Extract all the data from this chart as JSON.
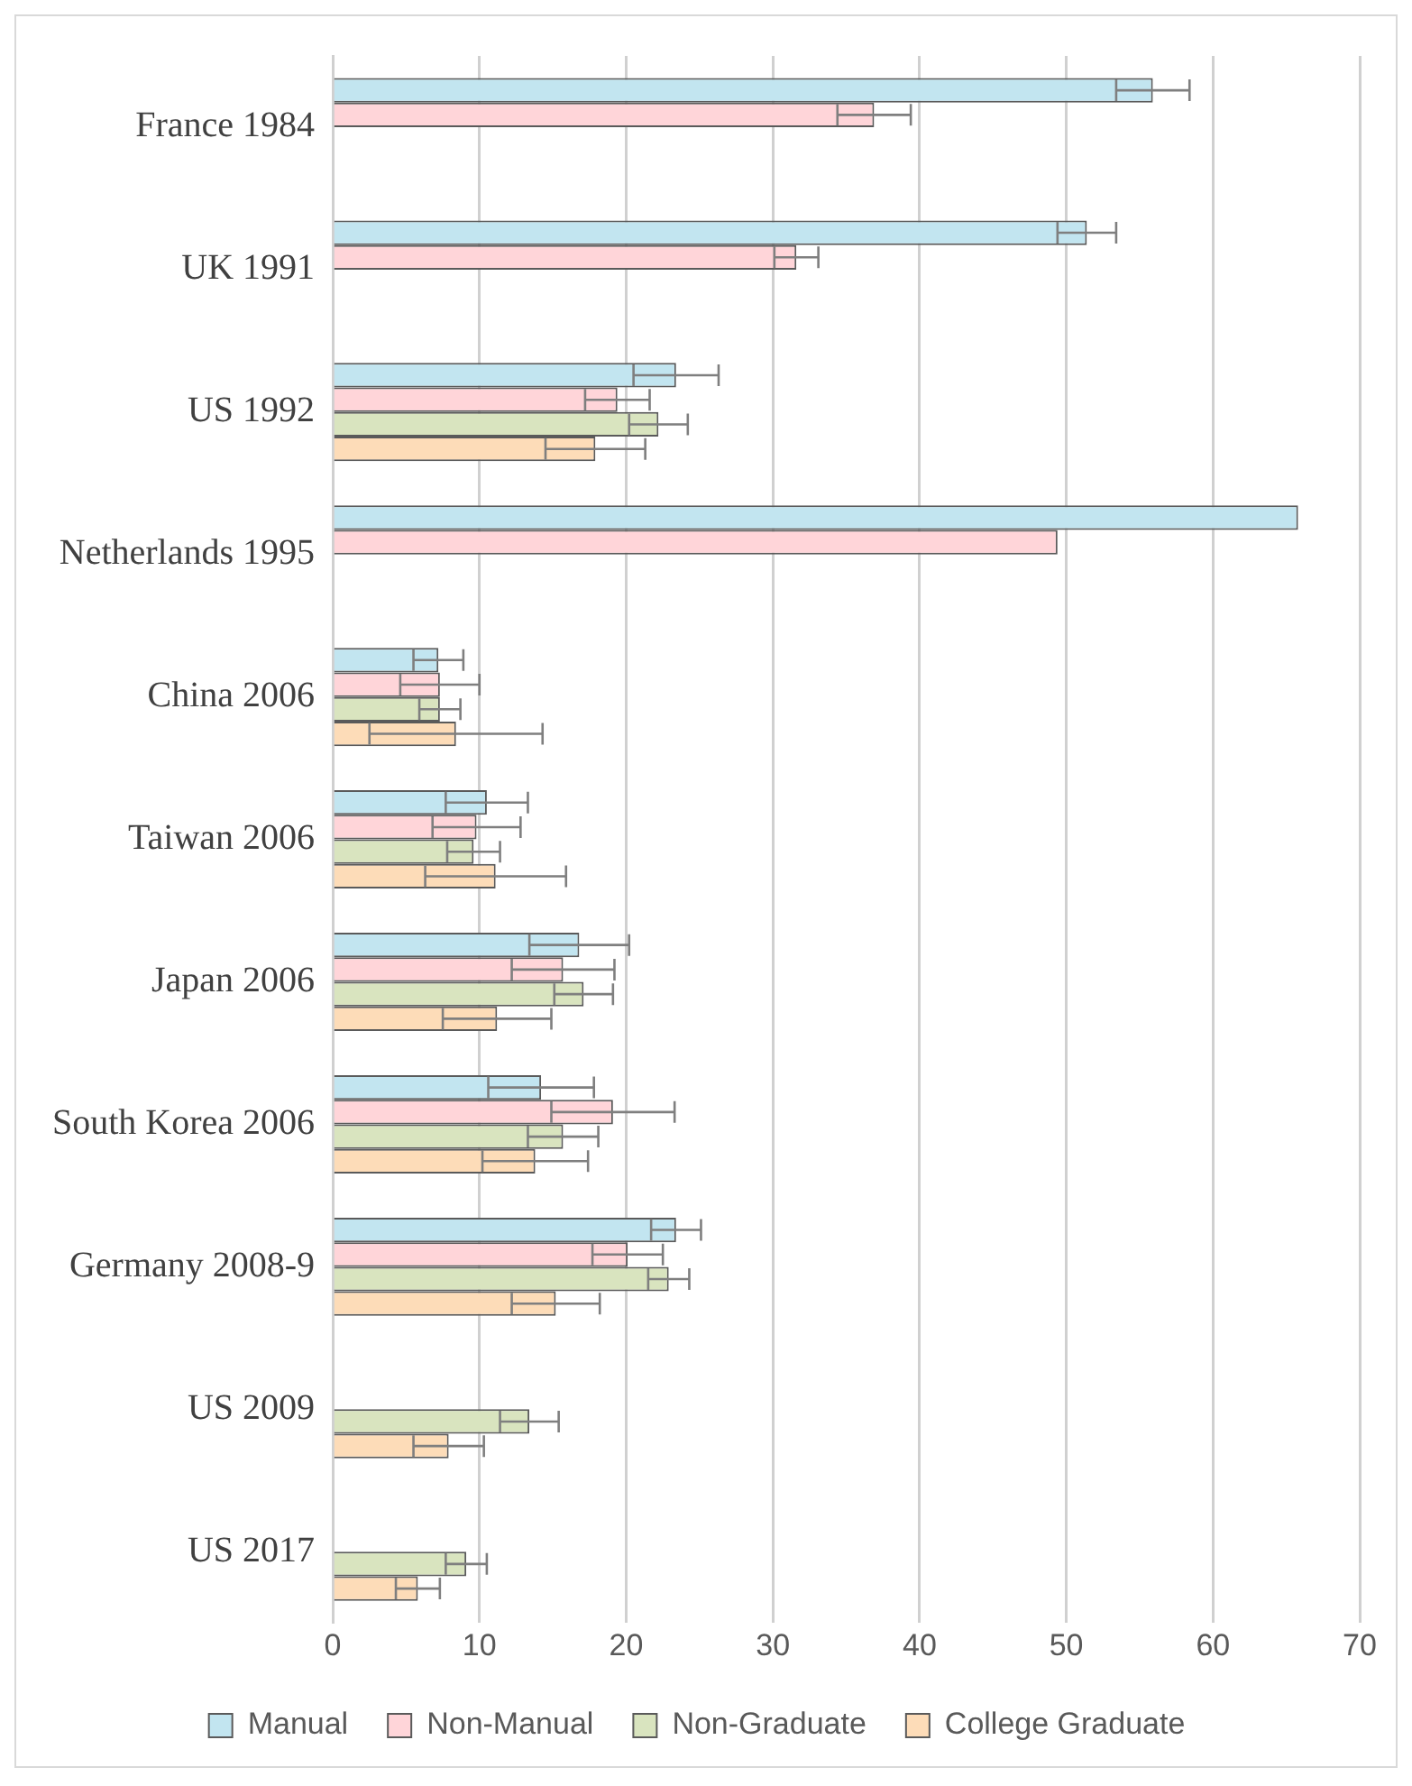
{
  "chart_data": {
    "type": "bar",
    "orientation": "horizontal",
    "categories": [
      "France 1984",
      "UK 1991",
      "US 1992",
      "Netherlands 1995",
      "China 2006",
      "Taiwan 2006",
      "Japan 2006",
      "South Korea 2006",
      "Germany 2008-9",
      "US 2009",
      "US 2017"
    ],
    "series": [
      {
        "name": "Manual",
        "color": "#c2e5f0",
        "values": [
          55.9,
          51.4,
          23.4,
          65.8,
          7.2,
          10.5,
          16.8,
          14.2,
          23.4,
          null,
          null
        ],
        "errors": [
          2.5,
          2.0,
          2.9,
          null,
          1.7,
          2.8,
          3.4,
          3.6,
          1.7,
          null,
          null
        ]
      },
      {
        "name": "Non-Manual",
        "color": "#ffd5d9",
        "values": [
          36.9,
          31.6,
          19.4,
          49.4,
          7.3,
          9.8,
          15.7,
          19.1,
          20.1,
          null,
          null
        ],
        "errors": [
          2.5,
          1.5,
          2.2,
          null,
          2.7,
          3.0,
          3.5,
          4.2,
          2.4,
          null,
          null
        ]
      },
      {
        "name": "Non-Graduate",
        "color": "#d9e4bf",
        "values": [
          null,
          null,
          22.2,
          null,
          7.3,
          9.6,
          17.1,
          15.7,
          22.9,
          13.4,
          9.1
        ],
        "errors": [
          null,
          null,
          2.0,
          null,
          1.4,
          1.8,
          2.0,
          2.4,
          1.4,
          2.0,
          1.4
        ]
      },
      {
        "name": "College Graduate",
        "color": "#fddcb8",
        "values": [
          null,
          null,
          17.9,
          null,
          8.4,
          11.1,
          11.2,
          13.8,
          15.2,
          7.9,
          5.8
        ],
        "errors": [
          null,
          null,
          3.4,
          null,
          5.9,
          4.8,
          3.7,
          3.6,
          3.0,
          2.4,
          1.5
        ]
      }
    ],
    "xlim": [
      0,
      70
    ],
    "xticks": [
      0,
      10,
      20,
      30,
      40,
      50,
      60,
      70
    ],
    "grid": "x",
    "legend": "bottom"
  }
}
